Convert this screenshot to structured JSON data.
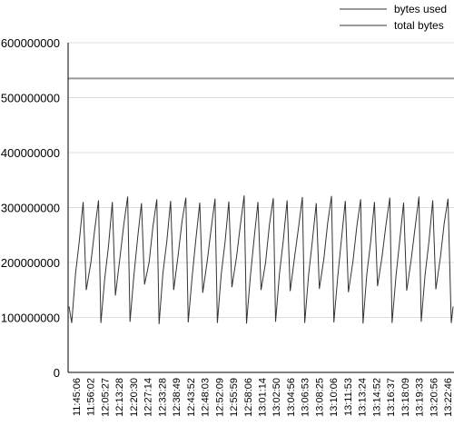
{
  "chart_data": {
    "type": "line",
    "title": "",
    "xlabel": "",
    "ylabel": "",
    "ylim": [
      0,
      600000000
    ],
    "yticks": [
      0,
      100000000,
      200000000,
      300000000,
      400000000,
      500000000,
      600000000
    ],
    "ytick_labels": [
      "0",
      "100000000",
      "200000000",
      "300000000",
      "400000000",
      "500000000",
      "600000000"
    ],
    "x_tick_labels": [
      "11:45:06",
      "11:56:02",
      "12:05:27",
      "12:13:28",
      "12:20:30",
      "12:27:14",
      "12:33:28",
      "12:38:49",
      "12:43:52",
      "12:48:03",
      "12:52:09",
      "12:55:59",
      "12:58:06",
      "13:01:14",
      "13:02:50",
      "13:04:56",
      "13:06:53",
      "13:08:25",
      "13:10:06",
      "13:11:53",
      "13:13:24",
      "13:14:52",
      "13:16:37",
      "13:18:09",
      "13:19:33",
      "13:20:56",
      "13:22:46"
    ],
    "grid": "horizontal",
    "legend_position": "top-right",
    "series": [
      {
        "name": "bytes used",
        "color": "#333333",
        "cycle_points": 8,
        "values": [
          120000000,
          90000000,
          180000000,
          240000000,
          310000000,
          150000000,
          200000000,
          260000000,
          313000000,
          90000000,
          170000000,
          230000000,
          310000000,
          140000000,
          210000000,
          270000000,
          320000000,
          92000000,
          175000000,
          245000000,
          308000000,
          160000000,
          200000000,
          265000000,
          315000000,
          88000000,
          180000000,
          238000000,
          312000000,
          150000000,
          215000000,
          275000000,
          318000000,
          91000000,
          172000000,
          242000000,
          309000000,
          145000000,
          205000000,
          262000000,
          316000000,
          90000000,
          178000000,
          236000000,
          311000000,
          155000000,
          210000000,
          268000000,
          322000000,
          89000000,
          174000000,
          244000000,
          310000000,
          150000000,
          200000000,
          270000000,
          317000000,
          92000000,
          180000000,
          240000000,
          313000000,
          148000000,
          212000000,
          264000000,
          319000000,
          90000000,
          176000000,
          239000000,
          308000000,
          152000000,
          207000000,
          272000000,
          321000000,
          91000000,
          173000000,
          243000000,
          312000000,
          146000000,
          203000000,
          266000000,
          315000000,
          89000000,
          179000000,
          237000000,
          310000000,
          157000000,
          211000000,
          269000000,
          318000000,
          90000000,
          175000000,
          241000000,
          309000000,
          149000000,
          206000000,
          263000000,
          320000000,
          92000000,
          177000000,
          238000000,
          313000000,
          151000000,
          209000000,
          271000000,
          316000000,
          90000000,
          120000000
        ]
      },
      {
        "name": "total bytes",
        "color": "#999999",
        "values": [
          535000000,
          535000000
        ]
      }
    ]
  }
}
